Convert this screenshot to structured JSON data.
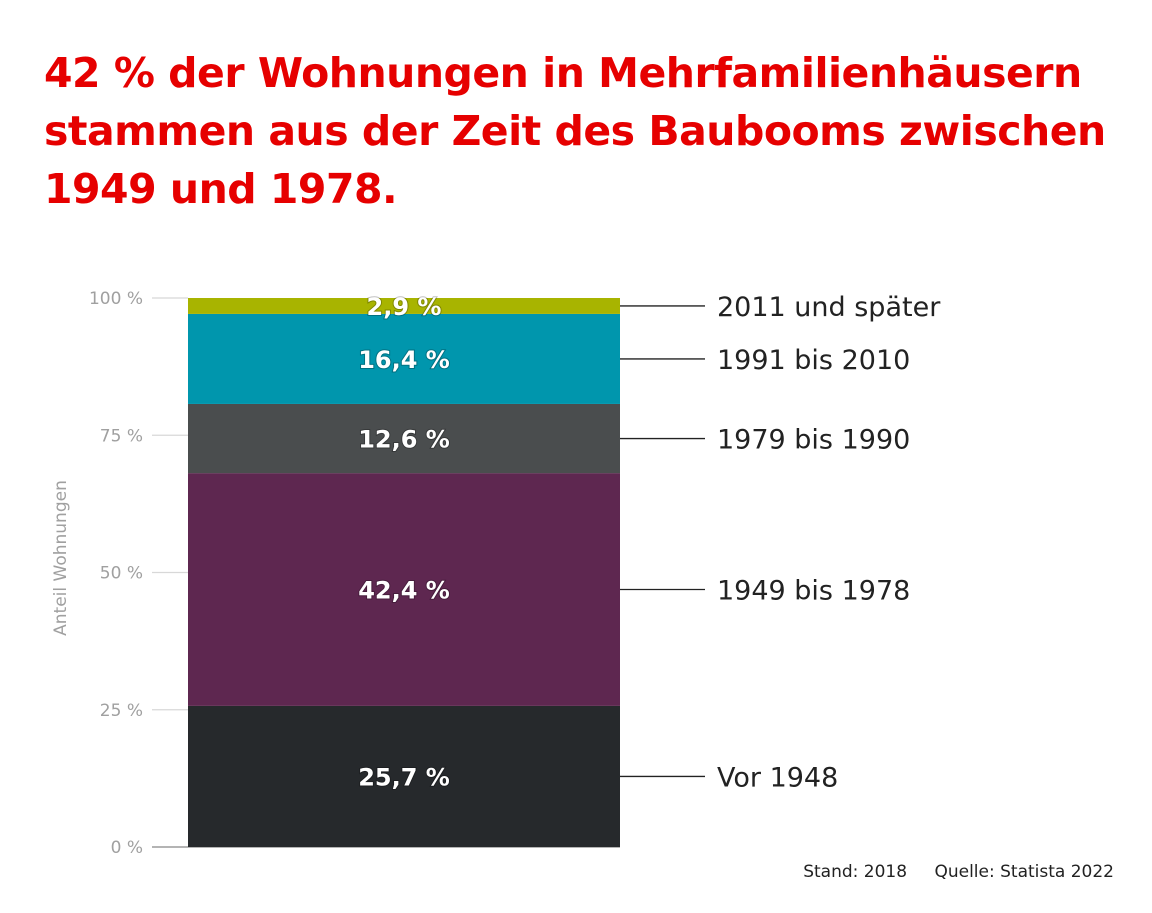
{
  "chart_data": {
    "type": "bar",
    "stacked": true,
    "title": "42 % der Wohnungen in Mehrfamilienhäusern stammen aus der Zeit des Baubooms zwischen 1949 und 1978.",
    "ylabel": "Anteil Wohnungen",
    "xlabel": "",
    "ylim": [
      0,
      100
    ],
    "yticks": [
      "0 %",
      "25 %",
      "50 %",
      "75 %",
      "100 %"
    ],
    "ytick_values": [
      0,
      25,
      50,
      75,
      100
    ],
    "grid": false,
    "legend_placement": "right",
    "series": [
      {
        "name": "Vor 1948",
        "value": 25.7,
        "label": "25,7 %",
        "color": "#26292c"
      },
      {
        "name": "1949 bis 1978",
        "value": 42.4,
        "label": "42,4 %",
        "color": "#5e2750"
      },
      {
        "name": "1979 bis 1990",
        "value": 12.6,
        "label": "12,6 %",
        "color": "#4a4d4e"
      },
      {
        "name": "1991 bis 2010",
        "value": 16.4,
        "label": "16,4 %",
        "color": "#0096ad"
      },
      {
        "name": "2011 und später",
        "value": 2.9,
        "label": "2,9 %",
        "color": "#a8b400"
      }
    ]
  },
  "title_color": "#e60000",
  "footer": {
    "stand": "Stand: 2018",
    "source": "Quelle: Statista 2022"
  }
}
